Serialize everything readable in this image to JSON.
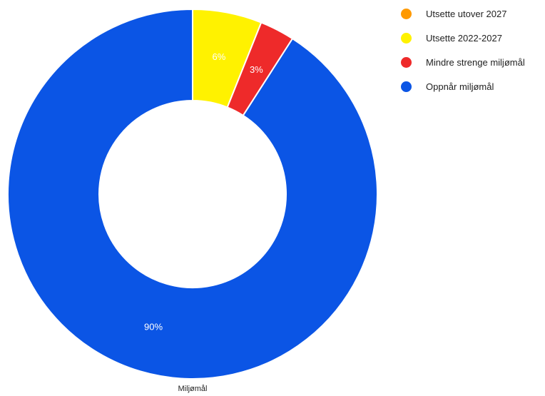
{
  "chart_data": {
    "type": "pie",
    "donut": true,
    "xlabel": "Miljømål",
    "legend_position": "right",
    "categories": [
      "Utsette utover 2027",
      "Utsette 2022-2027",
      "Mindre strenge miljømål",
      "Oppnår miljømål"
    ],
    "values": [
      0,
      6,
      3,
      90
    ],
    "value_labels": [
      "",
      "6%",
      "3%",
      "90%"
    ],
    "colors": [
      "#ff9900",
      "#fff200",
      "#ee2a2a",
      "#0b55e5"
    ],
    "label_color": "#ffffff",
    "separator_color": "#ffffff"
  }
}
